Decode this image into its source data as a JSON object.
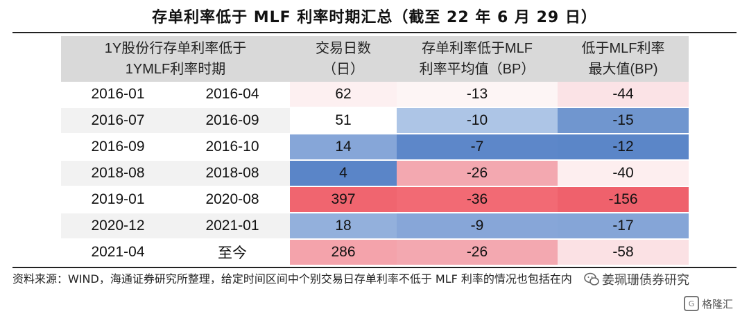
{
  "title": "存单利率低于 MLF 利率时期汇总（截至 22 年 6 月 29 日）",
  "headers": {
    "period_line1": "1Y股份行存单利率低于",
    "period_line2": "1YMLF利率时期",
    "days_line1": "交易日数",
    "days_line2": "（日）",
    "avg_line1": "存单利率低于MLF",
    "avg_line2": "利率平均值（BP）",
    "max_line1": "低于MLF利率",
    "max_line2": "最大值(BP)"
  },
  "rows": [
    {
      "start": "2016-01",
      "end": "2016-04",
      "days": "62",
      "avg": "-13",
      "max": "-44",
      "days_color": "#fdf0f1",
      "avg_color": "#fdf5f5",
      "max_color": "#fbe3e6"
    },
    {
      "start": "2016-07",
      "end": "2016-09",
      "days": "51",
      "avg": "-10",
      "max": "-15",
      "days_color": "#ffffff",
      "avg_color": "#adc5e6",
      "max_color": "#7096cf"
    },
    {
      "start": "2016-09",
      "end": "2016-10",
      "days": "14",
      "avg": "-7",
      "max": "-12",
      "days_color": "#86a6d8",
      "avg_color": "#5d87c9",
      "max_color": "#5b86c8"
    },
    {
      "start": "2018-08",
      "end": "2018-08",
      "days": "4",
      "avg": "-26",
      "max": "-40",
      "days_color": "#5a85c8",
      "avg_color": "#f3a8b0",
      "max_color": "#fdeeef"
    },
    {
      "start": "2019-01",
      "end": "2020-08",
      "days": "397",
      "avg": "-36",
      "max": "-156",
      "days_color": "#f0656f",
      "avg_color": "#f26a74",
      "max_color": "#ef616c"
    },
    {
      "start": "2020-12",
      "end": "2021-01",
      "days": "18",
      "avg": "-9",
      "max": "-17",
      "days_color": "#93b0dc",
      "avg_color": "#87a6d8",
      "max_color": "#85a5d7"
    },
    {
      "start": "2021-04",
      "end": "至今",
      "days": "286",
      "avg": "-26",
      "max": "-58",
      "days_color": "#f4a3ab",
      "avg_color": "#f3a8b0",
      "max_color": "#fbe1e4"
    }
  ],
  "note": "资料来源：WIND，海通证券研究所整理，给定时间区间中个别交易日存单利率不低于 MLF 利率的情况也包括在内",
  "watermark_wechat": "姜珮珊债券研究",
  "watermark_gelonghui": "格隆汇"
}
